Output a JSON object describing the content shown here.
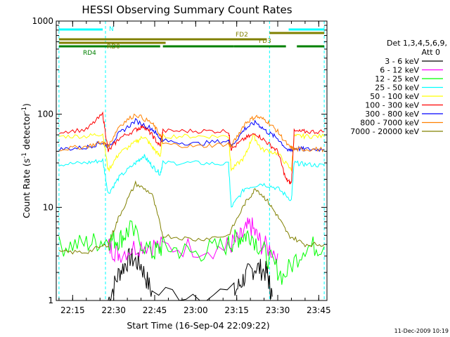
{
  "chart_data": {
    "type": "line",
    "title": "HESSI Observing Summary Count Rates",
    "xlabel": "Start Time (16-Sep-04 22:09:22)",
    "ylabel_main": "Count Rate (s",
    "ylabel_sup1": "-1",
    "ylabel_mid": " detector",
    "ylabel_sup2": "-1",
    "ylabel_end": ")",
    "y_scale": "log",
    "ylim": [
      1,
      1000
    ],
    "xlim": [
      "22:09",
      "23:48"
    ],
    "x_ticks": [
      "22:15",
      "22:30",
      "22:45",
      "23:00",
      "23:15",
      "23:30",
      "23:45"
    ],
    "y_ticks": [
      "1",
      "10",
      "100",
      "1000"
    ],
    "legend_header": [
      "Det 1,3,4,5,6,9,",
      "Att 0"
    ],
    "series": [
      {
        "name": "3 - 6 keV",
        "color": "#000000",
        "x": [
          "22:28",
          "22:32",
          "22:36",
          "22:40",
          "22:44",
          "23:14",
          "23:18",
          "23:22",
          "23:26",
          "23:28"
        ],
        "values": [
          1.0,
          2.0,
          2.9,
          2.4,
          1.2,
          1.2,
          1.8,
          2.3,
          2.0,
          1.1
        ]
      },
      {
        "name": "6 - 12 keV",
        "color": "#ff00ff",
        "x": [
          "22:28",
          "22:32",
          "22:40",
          "22:48",
          "23:10",
          "23:16",
          "23:20",
          "23:24",
          "23:30"
        ],
        "values": [
          3.8,
          3.2,
          4.0,
          3.8,
          3.6,
          4.5,
          6.5,
          4.0,
          3.2
        ]
      },
      {
        "name": "12 - 25 keV",
        "color": "#00ff00",
        "x": [
          "22:10",
          "22:20",
          "22:28",
          "22:32",
          "22:36",
          "22:44",
          "22:48",
          "23:00",
          "23:12",
          "23:16",
          "23:20",
          "23:26",
          "23:32",
          "23:40",
          "23:47"
        ],
        "values": [
          3.8,
          4.1,
          4.5,
          4.5,
          5.8,
          3.2,
          3.8,
          3.2,
          4.0,
          4.8,
          5.2,
          3.0,
          1.8,
          3.8,
          3.8
        ]
      },
      {
        "name": "25 - 50 keV",
        "color": "#00ffff",
        "x": [
          "22:10",
          "22:20",
          "22:26",
          "22:28",
          "22:32",
          "22:38",
          "22:41",
          "22:44",
          "22:47",
          "22:48",
          "23:00",
          "23:12",
          "23:13",
          "23:18",
          "23:24",
          "23:30",
          "23:35",
          "23:36",
          "23:40",
          "23:47"
        ],
        "values": [
          29,
          30,
          32,
          14,
          21,
          30,
          36,
          28,
          23,
          30,
          30,
          29,
          10,
          16,
          18,
          16,
          12,
          30,
          29,
          28
        ]
      },
      {
        "name": "50 - 100 keV",
        "color": "#ffff00",
        "x": [
          "22:10",
          "22:20",
          "22:26",
          "22:28",
          "22:32",
          "22:38",
          "22:41",
          "22:44",
          "22:47",
          "22:48",
          "23:00",
          "23:12",
          "23:13",
          "23:18",
          "23:21",
          "23:24",
          "23:30",
          "23:35",
          "23:36",
          "23:40",
          "23:47"
        ],
        "values": [
          58,
          58,
          62,
          25,
          38,
          50,
          58,
          45,
          35,
          58,
          58,
          58,
          25,
          35,
          60,
          42,
          38,
          25,
          58,
          58,
          58
        ]
      },
      {
        "name": "100 - 300 keV",
        "color": "#ff0000",
        "x": [
          "22:10",
          "22:20",
          "22:26",
          "22:28",
          "22:32",
          "22:38",
          "22:41",
          "22:44",
          "22:47",
          "22:48",
          "23:00",
          "23:12",
          "23:13",
          "23:18",
          "23:22",
          "23:26",
          "23:30",
          "23:33",
          "23:35",
          "23:36",
          "23:40",
          "23:47"
        ],
        "values": [
          65,
          68,
          100,
          40,
          55,
          68,
          75,
          60,
          45,
          66,
          66,
          66,
          42,
          55,
          62,
          50,
          40,
          20,
          18,
          65,
          65,
          65
        ]
      },
      {
        "name": "300 - 800 keV",
        "color": "#0000ff",
        "x": [
          "22:10",
          "22:20",
          "22:26",
          "22:28",
          "22:32",
          "22:38",
          "22:44",
          "22:47",
          "22:48",
          "23:00",
          "23:12",
          "23:13",
          "23:18",
          "23:22",
          "23:26",
          "23:30",
          "23:34",
          "23:36",
          "23:40",
          "23:47"
        ],
        "values": [
          42,
          44,
          50,
          45,
          62,
          85,
          70,
          55,
          52,
          48,
          52,
          45,
          70,
          82,
          65,
          55,
          40,
          43,
          42,
          42
        ]
      },
      {
        "name": "800 - 7000 keV",
        "color": "#ff8000",
        "x": [
          "22:10",
          "22:20",
          "22:26",
          "22:28",
          "22:32",
          "22:38",
          "22:44",
          "22:47",
          "22:48",
          "23:00",
          "23:12",
          "23:13",
          "23:18",
          "23:22",
          "23:26",
          "23:30",
          "23:34",
          "23:36",
          "23:40",
          "23:47"
        ],
        "values": [
          42,
          45,
          50,
          45,
          75,
          100,
          80,
          60,
          48,
          45,
          48,
          45,
          80,
          95,
          85,
          65,
          45,
          42,
          42,
          42
        ]
      },
      {
        "name": "7000 - 20000 keV",
        "color": "#808000",
        "x": [
          "22:10",
          "22:20",
          "22:28",
          "22:32",
          "22:38",
          "22:44",
          "22:48",
          "23:00",
          "23:12",
          "23:18",
          "23:22",
          "23:26",
          "23:30",
          "23:34",
          "23:40",
          "23:47"
        ],
        "values": [
          3.3,
          3.3,
          4.0,
          8.0,
          18,
          14,
          5.0,
          4.5,
          5.0,
          11,
          16,
          12,
          8.0,
          5.0,
          4.0,
          4.0
        ]
      }
    ],
    "attenuator_bars": [
      {
        "label": "N",
        "color": "#00ffff",
        "segments": [
          [
            "22:10",
            "22:26"
          ],
          [
            "23:34",
            "23:47"
          ]
        ]
      },
      {
        "label": "FD2",
        "color": "#808000",
        "segments": [
          [
            "23:27",
            "23:47"
          ]
        ]
      },
      {
        "label": "FD3",
        "color": "#808000",
        "segments": [
          [
            "22:10",
            "23:26"
          ]
        ]
      },
      {
        "label": "RD0",
        "color": "#808000",
        "segments": [
          [
            "22:10",
            "22:49"
          ]
        ]
      },
      {
        "label": "RD4",
        "color": "#008000",
        "segments": [
          [
            "22:10",
            "22:29"
          ],
          [
            "22:29",
            "22:47"
          ],
          [
            "22:48",
            "23:14"
          ],
          [
            "23:14",
            "23:33"
          ],
          [
            "23:37",
            "23:47"
          ]
        ]
      }
    ],
    "vertical_markers": [
      "22:10",
      "22:27",
      "23:27",
      "23:47"
    ],
    "grid": false,
    "legend_position": "right"
  },
  "footer": {
    "timestamp": "11-Dec-2009 10:19"
  }
}
